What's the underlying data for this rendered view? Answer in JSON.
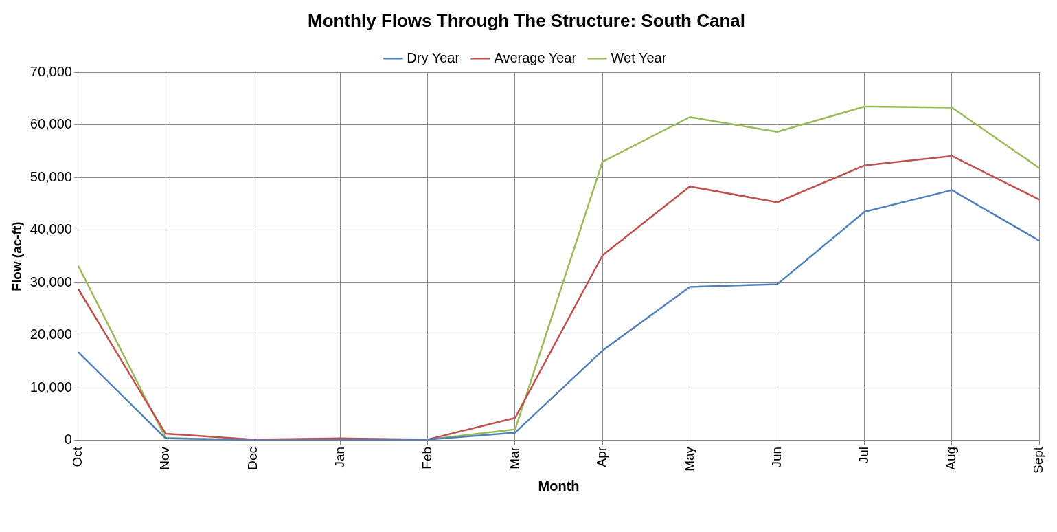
{
  "chart_data": {
    "type": "line",
    "title": "Monthly Flows Through The Structure: South Canal",
    "xlabel": "Month",
    "ylabel": "Flow (ac-ft)",
    "categories": [
      "Oct",
      "Nov",
      "Dec",
      "Jan",
      "Feb",
      "Mar",
      "Apr",
      "May",
      "Jun",
      "Jul",
      "Aug",
      "Sept"
    ],
    "series": [
      {
        "name": "Dry Year",
        "color": "#4f81bd",
        "values": [
          16800,
          400,
          100,
          100,
          200,
          1500,
          17100,
          29200,
          29700,
          43500,
          47600,
          38000
        ]
      },
      {
        "name": "Average Year",
        "color": "#c0504d",
        "values": [
          28800,
          1300,
          200,
          400,
          200,
          4300,
          35200,
          48300,
          45300,
          52300,
          54100,
          45800
        ]
      },
      {
        "name": "Wet Year",
        "color": "#9bbb59",
        "values": [
          33200,
          500,
          100,
          100,
          200,
          2100,
          53000,
          61500,
          58700,
          63500,
          63300,
          51800
        ]
      }
    ],
    "ylim": [
      0,
      70000
    ],
    "yticks": [
      {
        "value": 0,
        "label": "0"
      },
      {
        "value": 10000,
        "label": "10,000"
      },
      {
        "value": 20000,
        "label": "20,000"
      },
      {
        "value": 30000,
        "label": "30,000"
      },
      {
        "value": 40000,
        "label": "40,000"
      },
      {
        "value": 50000,
        "label": "50,000"
      },
      {
        "value": 60000,
        "label": "60,000"
      },
      {
        "value": 70000,
        "label": "70,000"
      }
    ],
    "grid": true,
    "legend": "top",
    "marker": "none",
    "line_style": "solid"
  }
}
